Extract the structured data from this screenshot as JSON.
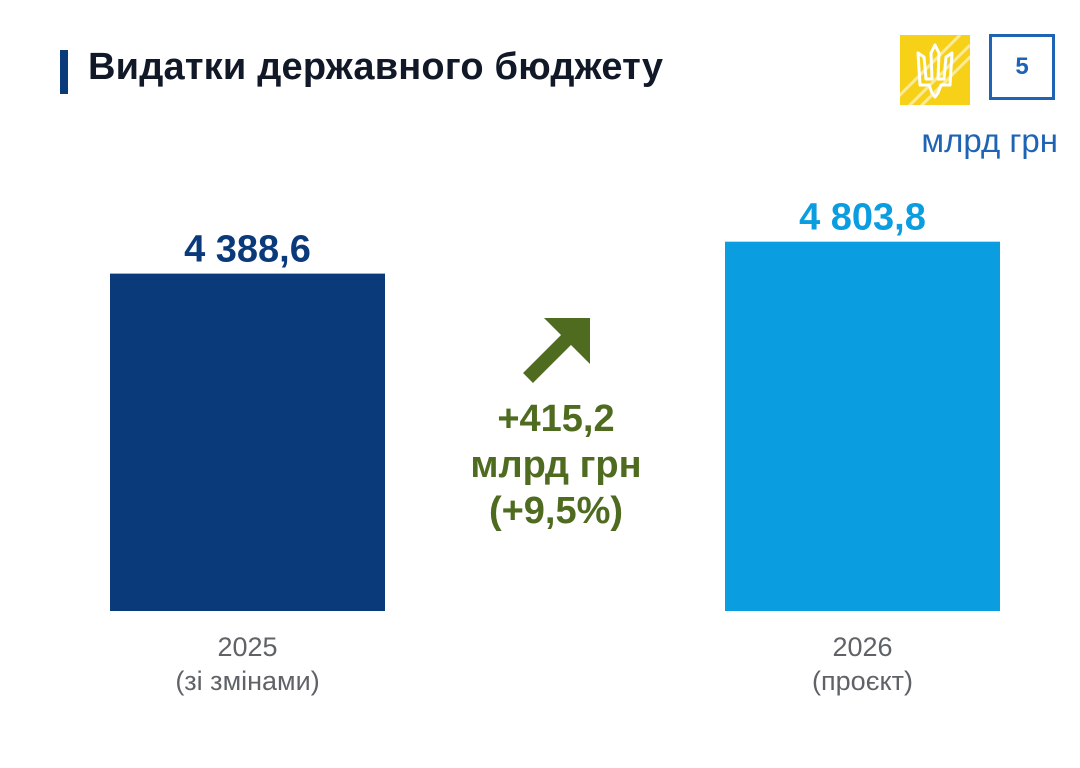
{
  "header": {
    "title": "Видатки державного бюджету",
    "page_number": "5",
    "unit": "млрд грн",
    "emblem_icon": "ukraine-trident-icon"
  },
  "colors": {
    "title_accent": "#0b3a7a",
    "bar_2025": "#0b3a7a",
    "bar_2026": "#0a9de0",
    "change": "#4e6b1f",
    "emblem": "#f7d117",
    "page_box": "#1f64b4"
  },
  "chart_data": {
    "type": "bar",
    "title": "Видатки державного бюджету",
    "unit": "млрд грн",
    "categories": [
      "2025 (зі змінами)",
      "2026 (проєкт)"
    ],
    "category_labels": [
      [
        "2025",
        "(зі змінами)"
      ],
      [
        "2026",
        "(проєкт)"
      ]
    ],
    "values": [
      4388.6,
      4803.8
    ],
    "value_labels": [
      "4 388,6",
      "4 803,8"
    ],
    "grid": false,
    "legend": false
  },
  "change": {
    "direction_icon": "arrow-up-right-icon",
    "amount": "+415,2",
    "unit": "млрд грн",
    "percent": "(+9,5%)"
  }
}
